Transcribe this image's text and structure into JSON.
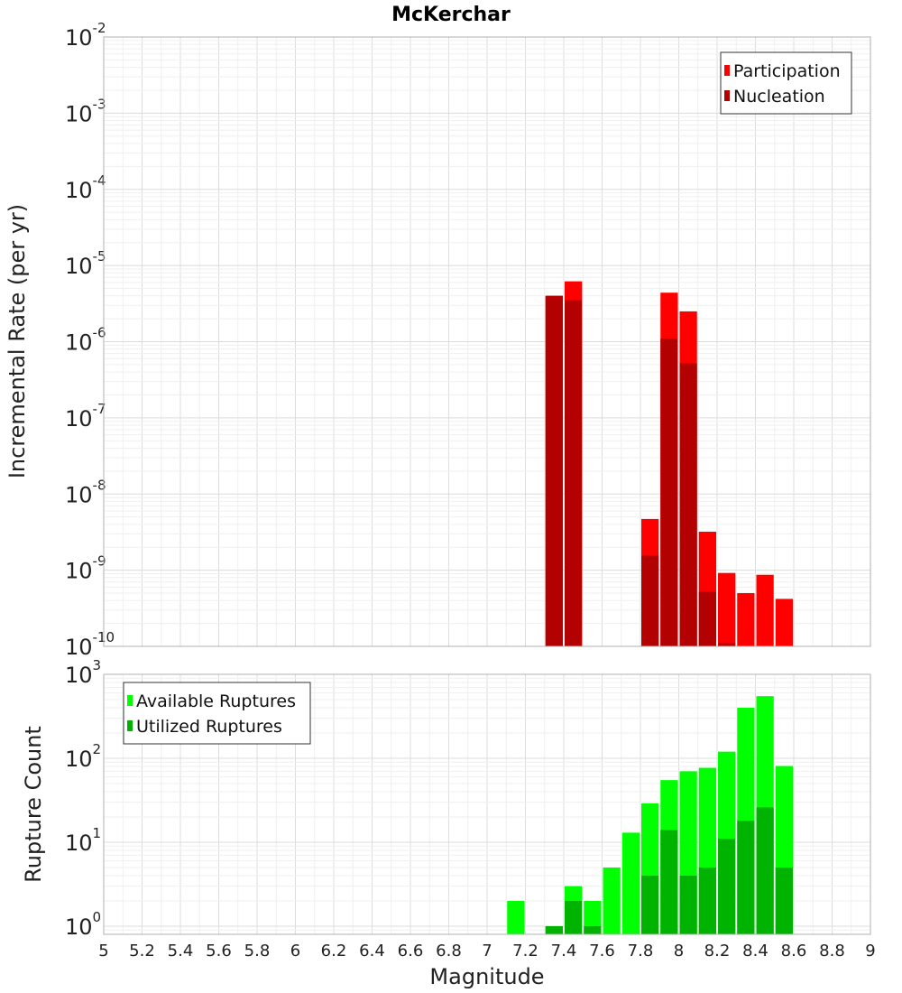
{
  "chart_data": [
    {
      "type": "bar",
      "title": "McKerchar",
      "xlabel": "",
      "ylabel": "Incremental Rate (per yr)",
      "xlim": [
        5,
        9
      ],
      "ylim": [
        1e-10,
        0.01
      ],
      "yscale": "log",
      "grid": true,
      "legend_position": "top-right",
      "bin_width": 0.1,
      "series": [
        {
          "name": "Participation",
          "color": "#ff0000",
          "points": [
            {
              "x": 7.35,
              "y": 4e-06
            },
            {
              "x": 7.45,
              "y": 6.2e-06
            },
            {
              "x": 7.85,
              "y": 4.7e-09
            },
            {
              "x": 7.95,
              "y": 4.4e-06
            },
            {
              "x": 8.05,
              "y": 2.5e-06
            },
            {
              "x": 8.15,
              "y": 3.2e-09
            },
            {
              "x": 8.25,
              "y": 9.2e-10
            },
            {
              "x": 8.35,
              "y": 5e-10
            },
            {
              "x": 8.45,
              "y": 8.7e-10
            },
            {
              "x": 8.55,
              "y": 4.2e-10
            }
          ]
        },
        {
          "name": "Nucleation",
          "color": "#b30000",
          "points": [
            {
              "x": 7.35,
              "y": 4e-06
            },
            {
              "x": 7.45,
              "y": 3.5e-06
            },
            {
              "x": 7.85,
              "y": 1.55e-09
            },
            {
              "x": 7.95,
              "y": 1.1e-06
            },
            {
              "x": 8.05,
              "y": 5.2e-07
            },
            {
              "x": 8.15,
              "y": 5.2e-10
            },
            {
              "x": 8.25,
              "y": 1.1e-10
            }
          ]
        }
      ]
    },
    {
      "type": "bar",
      "title": "",
      "xlabel": "Magnitude",
      "ylabel": "Rupture Count",
      "xlim": [
        5,
        9
      ],
      "ylim": [
        0.8,
        1000
      ],
      "yscale": "log",
      "grid": true,
      "legend_position": "top-left",
      "bin_width": 0.1,
      "x_ticks": [
        "5",
        "5.2",
        "5.4",
        "5.6",
        "5.8",
        "6",
        "6.2",
        "6.4",
        "6.6",
        "6.8",
        "7",
        "7.2",
        "7.4",
        "7.6",
        "7.8",
        "8",
        "8.2",
        "8.4",
        "8.6",
        "8.8",
        "9"
      ],
      "series": [
        {
          "name": "Available Ruptures",
          "color": "#00ff00",
          "points": [
            {
              "x": 7.15,
              "y": 2
            },
            {
              "x": 7.35,
              "y": 1
            },
            {
              "x": 7.45,
              "y": 3
            },
            {
              "x": 7.55,
              "y": 2
            },
            {
              "x": 7.65,
              "y": 5
            },
            {
              "x": 7.75,
              "y": 13
            },
            {
              "x": 7.85,
              "y": 29
            },
            {
              "x": 7.95,
              "y": 55
            },
            {
              "x": 8.05,
              "y": 70
            },
            {
              "x": 8.15,
              "y": 77
            },
            {
              "x": 8.25,
              "y": 120
            },
            {
              "x": 8.35,
              "y": 400
            },
            {
              "x": 8.45,
              "y": 550
            },
            {
              "x": 8.55,
              "y": 81
            }
          ]
        },
        {
          "name": "Utilized Ruptures",
          "color": "#00b300",
          "points": [
            {
              "x": 7.35,
              "y": 1
            },
            {
              "x": 7.45,
              "y": 2
            },
            {
              "x": 7.55,
              "y": 1
            },
            {
              "x": 7.85,
              "y": 4
            },
            {
              "x": 7.95,
              "y": 14
            },
            {
              "x": 8.05,
              "y": 4
            },
            {
              "x": 8.15,
              "y": 5
            },
            {
              "x": 8.25,
              "y": 11
            },
            {
              "x": 8.35,
              "y": 18
            },
            {
              "x": 8.45,
              "y": 26
            },
            {
              "x": 8.55,
              "y": 5
            }
          ]
        }
      ]
    }
  ]
}
